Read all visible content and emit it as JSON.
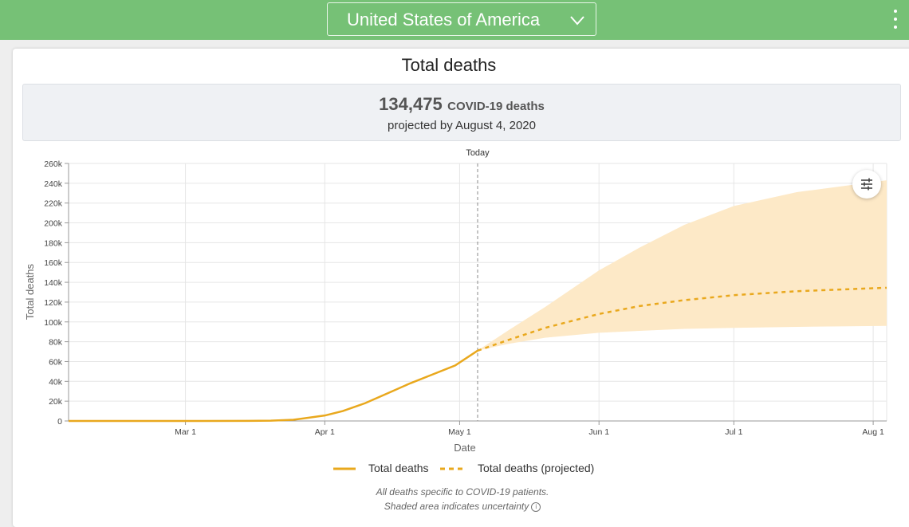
{
  "header": {
    "country": "United States of America",
    "menu_icon": "kebab-menu-icon",
    "dropdown_icon": "chevron-down-icon"
  },
  "card": {
    "title": "Total deaths"
  },
  "summary": {
    "value": "134,475",
    "unit": "COVID-19 deaths",
    "subtitle": "projected by August 4, 2020"
  },
  "chart_data": {
    "type": "line",
    "xlabel": "Date",
    "ylabel": "Total deaths",
    "x_ticks": [
      "Mar 1",
      "Apr 1",
      "May 1",
      "Jun 1",
      "Jul 1",
      "Aug 1"
    ],
    "y_ticks": [
      "0",
      "20k",
      "40k",
      "60k",
      "80k",
      "100k",
      "120k",
      "140k",
      "160k",
      "180k",
      "200k",
      "220k",
      "240k",
      "260k"
    ],
    "xlim": [
      "2020-02-04",
      "2020-08-04"
    ],
    "ylim": [
      0,
      260000
    ],
    "grid": true,
    "today_label": "Today",
    "today_date": "2020-05-05",
    "series": [
      {
        "name": "Total deaths",
        "style": "solid",
        "color": "#e9a81d",
        "points": [
          [
            "2020-02-04",
            0
          ],
          [
            "2020-03-01",
            0
          ],
          [
            "2020-03-15",
            100
          ],
          [
            "2020-03-20",
            300
          ],
          [
            "2020-03-25",
            1200
          ],
          [
            "2020-04-01",
            5500
          ],
          [
            "2020-04-05",
            10000
          ],
          [
            "2020-04-10",
            18000
          ],
          [
            "2020-04-15",
            28000
          ],
          [
            "2020-04-20",
            38000
          ],
          [
            "2020-04-25",
            47000
          ],
          [
            "2020-04-30",
            56000
          ],
          [
            "2020-05-05",
            71000
          ]
        ]
      },
      {
        "name": "Total deaths (projected)",
        "style": "dashed",
        "color": "#e9a81d",
        "points": [
          [
            "2020-05-05",
            71000
          ],
          [
            "2020-05-12",
            82000
          ],
          [
            "2020-05-20",
            94000
          ],
          [
            "2020-06-01",
            108000
          ],
          [
            "2020-06-10",
            116000
          ],
          [
            "2020-06-20",
            122000
          ],
          [
            "2020-07-01",
            127000
          ],
          [
            "2020-07-15",
            131000
          ],
          [
            "2020-08-01",
            134000
          ],
          [
            "2020-08-04",
            134475
          ]
        ]
      }
    ],
    "uncertainty_band": {
      "color": "#fde9c7",
      "points": [
        [
          "2020-05-05",
          71000,
          71000
        ],
        [
          "2020-05-12",
          78000,
          92000
        ],
        [
          "2020-05-20",
          84000,
          115000
        ],
        [
          "2020-06-01",
          89000,
          152000
        ],
        [
          "2020-06-10",
          91000,
          175000
        ],
        [
          "2020-06-20",
          93000,
          198000
        ],
        [
          "2020-07-01",
          94000,
          217000
        ],
        [
          "2020-07-15",
          95000,
          231000
        ],
        [
          "2020-08-04",
          96000,
          243000
        ]
      ]
    }
  },
  "legend": {
    "actual": "Total deaths",
    "projected": "Total deaths (projected)"
  },
  "notes": {
    "line1": "All deaths specific to COVID-19 patients.",
    "line2": "Shaded area indicates uncertainty"
  }
}
